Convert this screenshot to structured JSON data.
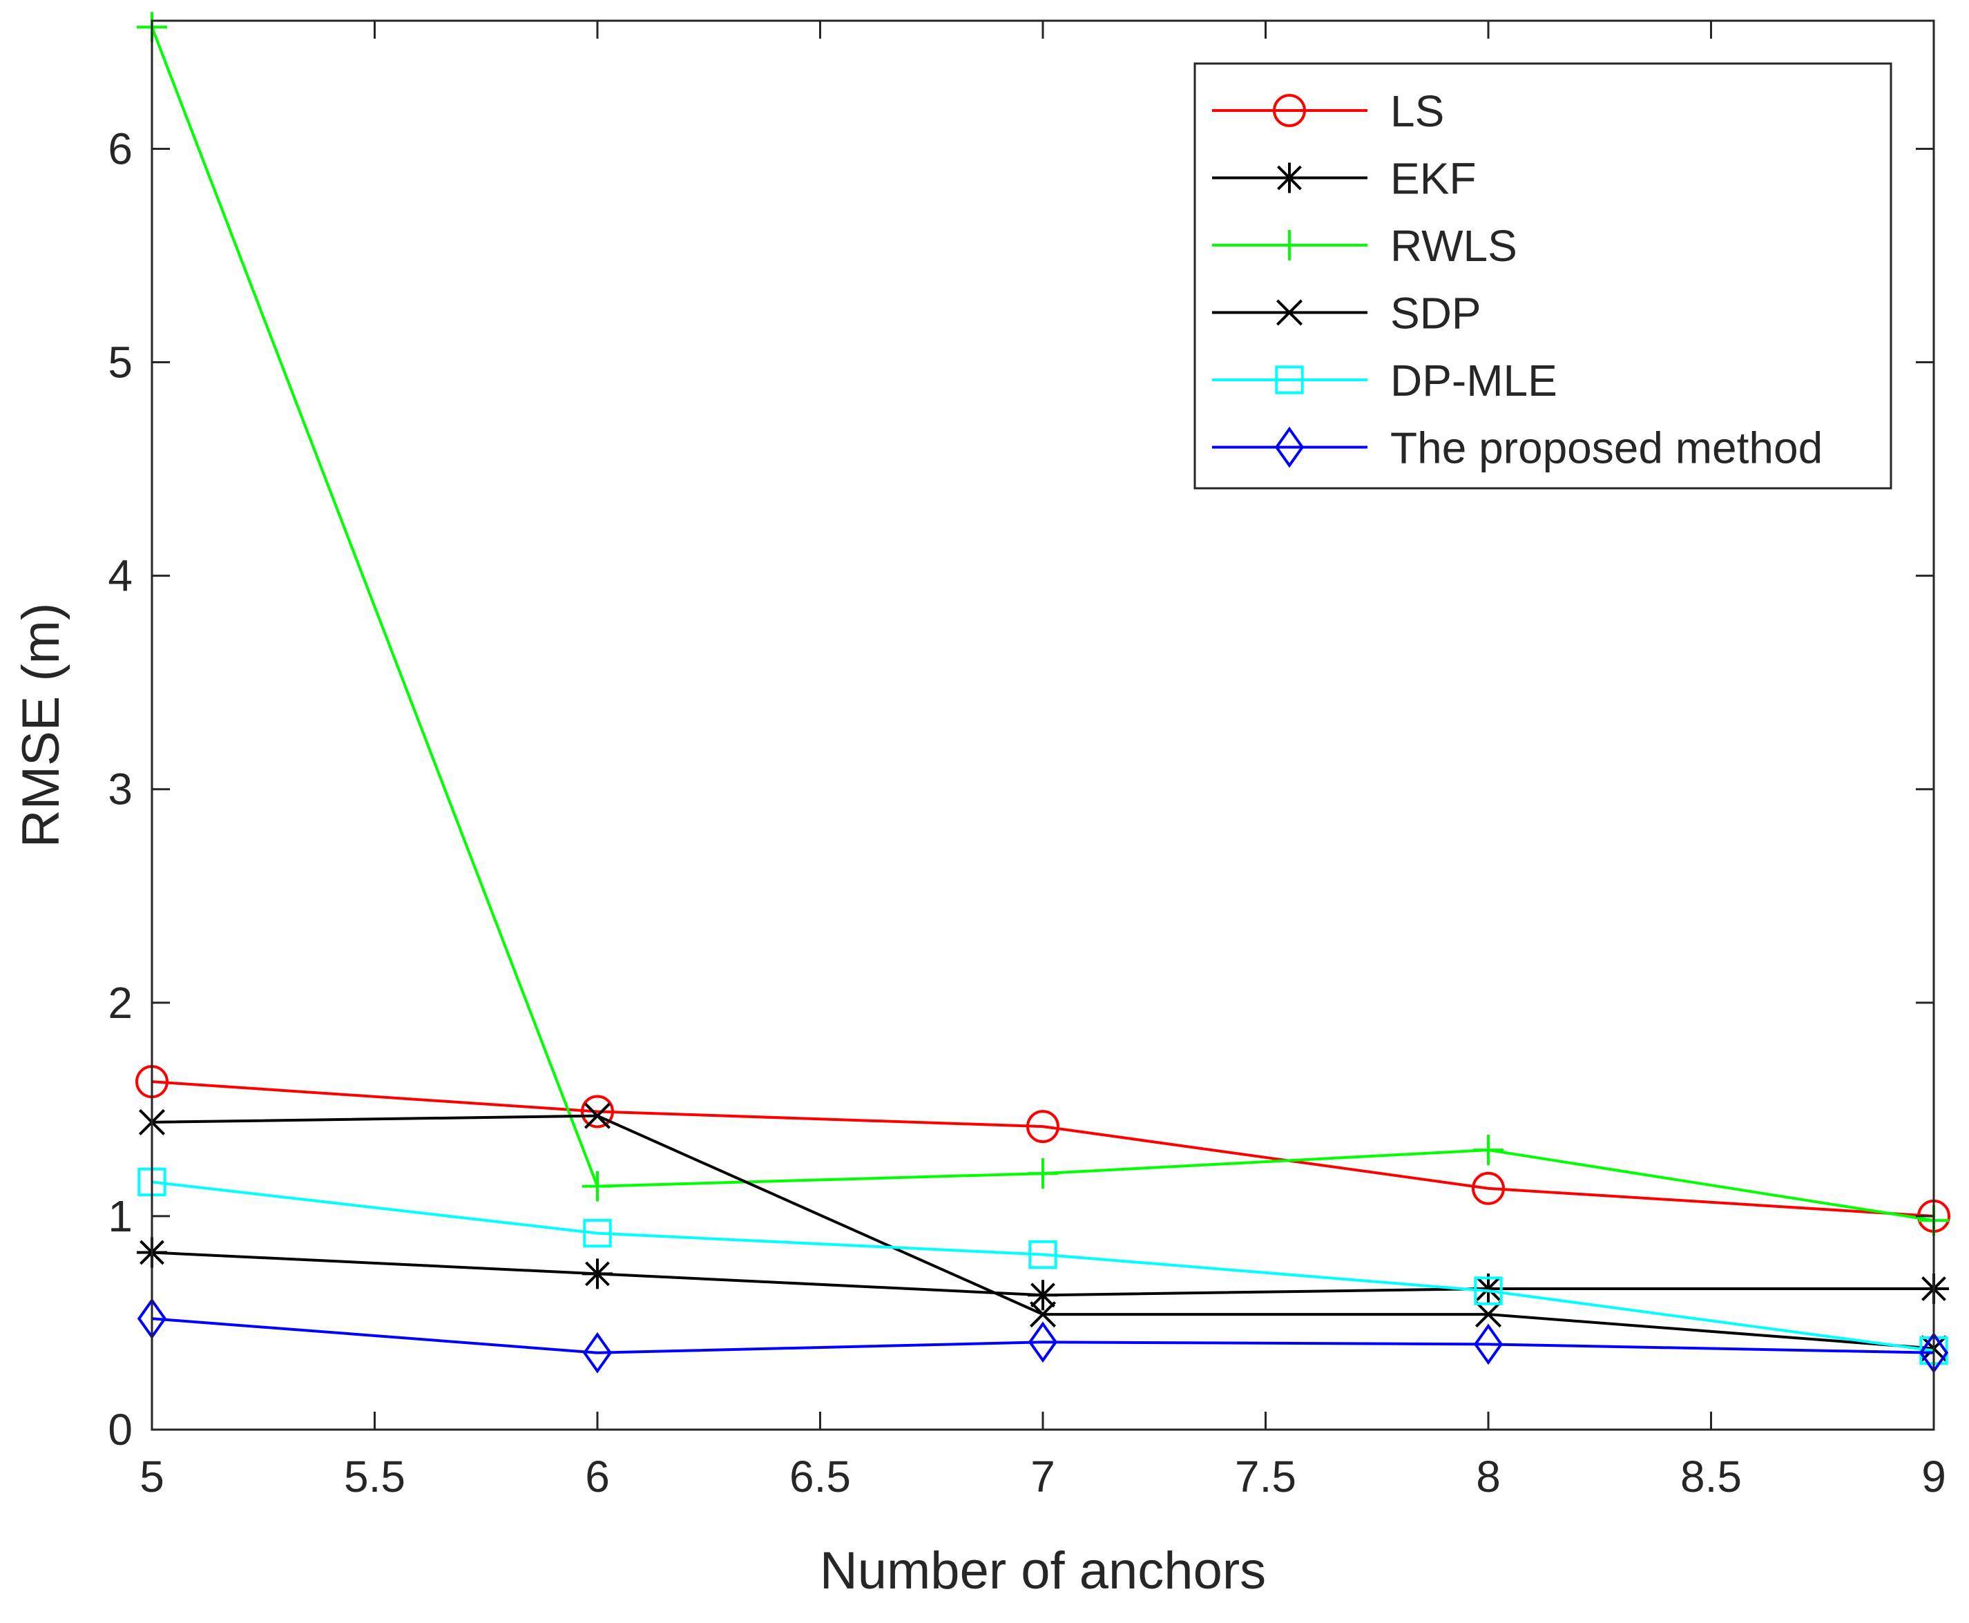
{
  "chart_data": {
    "type": "line",
    "title": "",
    "xlabel": "Number of anchors",
    "ylabel": "RMSE (m)",
    "xlim": [
      5,
      9
    ],
    "ylim": [
      0,
      6.6
    ],
    "xticks": [
      5,
      5.5,
      6,
      6.5,
      7,
      7.5,
      8,
      8.5,
      9
    ],
    "xtick_labels": [
      "5",
      "5.5",
      "6",
      "6.5",
      "7",
      "7.5",
      "8",
      "8.5",
      "9"
    ],
    "yticks": [
      0,
      1,
      2,
      3,
      4,
      5,
      6
    ],
    "ytick_labels": [
      "0",
      "1",
      "2",
      "3",
      "4",
      "5",
      "6"
    ],
    "grid": false,
    "legend_position": "top-right",
    "x": [
      5,
      6,
      7,
      8,
      9
    ],
    "series": [
      {
        "name": "LS",
        "color": "#ff0000",
        "marker": "circle",
        "values": [
          1.63,
          1.49,
          1.42,
          1.13,
          1.0
        ]
      },
      {
        "name": "EKF",
        "color": "#000000",
        "marker": "asterisk",
        "values": [
          0.83,
          0.73,
          0.63,
          0.66,
          0.66
        ]
      },
      {
        "name": "RWLS",
        "color": "#00ff00",
        "marker": "plus",
        "values": [
          6.57,
          1.14,
          1.2,
          1.31,
          0.98
        ]
      },
      {
        "name": "SDP",
        "color": "#000000",
        "marker": "x",
        "values": [
          1.44,
          1.47,
          0.54,
          0.54,
          0.38
        ]
      },
      {
        "name": "DP-MLE",
        "color": "#00ffff",
        "marker": "square",
        "values": [
          1.16,
          0.92,
          0.82,
          0.65,
          0.37
        ]
      },
      {
        "name": "The proposed method",
        "color": "#0000ff",
        "marker": "diamond",
        "values": [
          0.52,
          0.36,
          0.41,
          0.4,
          0.36
        ]
      }
    ]
  }
}
